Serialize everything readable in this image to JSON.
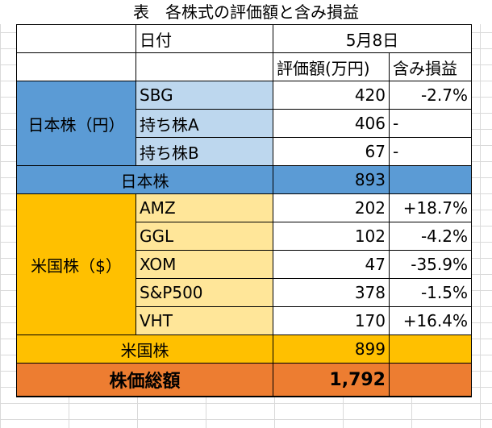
{
  "title": "表　各株式の評価額と含み損益",
  "header": {
    "date_label": "日付",
    "date_value": "5月8日",
    "value_label": "評価額(万円)",
    "gain_label": "含み損益"
  },
  "japan": {
    "group_label": "日本株（円）",
    "items": [
      {
        "name": "SBG",
        "value": "420",
        "gain": "-2.7%"
      },
      {
        "name": "持ち株A",
        "value": "406",
        "gain": "-"
      },
      {
        "name": "持ち株B",
        "value": "67",
        "gain": "-"
      }
    ],
    "subtotal_label": "日本株",
    "subtotal_value": "893"
  },
  "us": {
    "group_label": "米国株（$）",
    "items": [
      {
        "name": "AMZ",
        "value": "202",
        "gain": "+18.7%"
      },
      {
        "name": "GGL",
        "value": "102",
        "gain": "-4.2%"
      },
      {
        "name": "XOM",
        "value": "47",
        "gain": "-35.9%"
      },
      {
        "name": "S&P500",
        "value": "378",
        "gain": "-1.5%"
      },
      {
        "name": "VHT",
        "value": "170",
        "gain": "+16.4%"
      }
    ],
    "subtotal_label": "米国株",
    "subtotal_value": "899"
  },
  "total": {
    "label": "株価総額",
    "value": "1,792"
  },
  "colors": {
    "japan_group": "#5b9bd5",
    "japan_item": "#bdd7ee",
    "us_group": "#ffc000",
    "us_item": "#ffe699",
    "total": "#ed7d31"
  }
}
